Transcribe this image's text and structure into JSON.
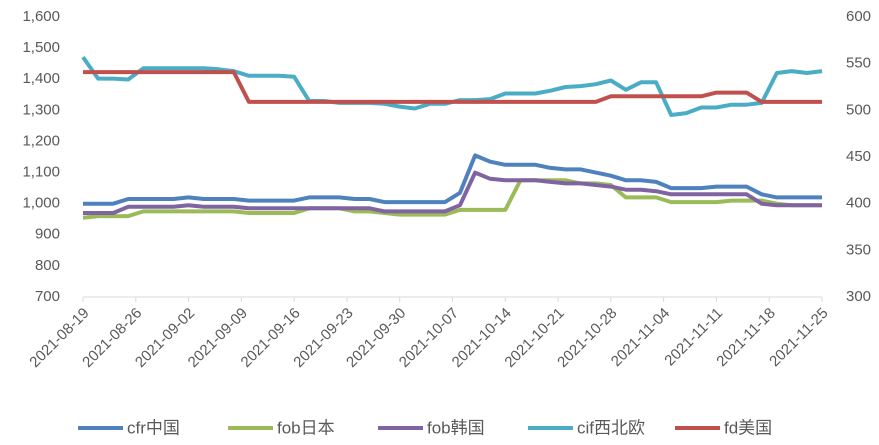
{
  "chart_data": {
    "type": "line",
    "x": [
      "2021-08-19",
      "2021-08-21",
      "2021-08-23",
      "2021-08-25",
      "2021-08-27",
      "2021-08-29",
      "2021-08-31",
      "2021-09-02",
      "2021-09-04",
      "2021-09-06",
      "2021-09-08",
      "2021-09-10",
      "2021-09-12",
      "2021-09-14",
      "2021-09-16",
      "2021-09-18",
      "2021-09-20",
      "2021-09-22",
      "2021-09-24",
      "2021-09-26",
      "2021-09-28",
      "2021-09-30",
      "2021-10-02",
      "2021-10-04",
      "2021-10-06",
      "2021-10-08",
      "2021-10-10",
      "2021-10-12",
      "2021-10-14",
      "2021-10-16",
      "2021-10-18",
      "2021-10-20",
      "2021-10-22",
      "2021-10-24",
      "2021-10-26",
      "2021-10-28",
      "2021-10-30",
      "2021-11-01",
      "2021-11-03",
      "2021-11-05",
      "2021-11-07",
      "2021-11-09",
      "2021-11-11",
      "2021-11-13",
      "2021-11-15",
      "2021-11-17",
      "2021-11-19",
      "2021-11-21",
      "2021-11-23",
      "2021-11-25"
    ],
    "xticks": [
      "2021-08-19",
      "2021-08-26",
      "2021-09-02",
      "2021-09-09",
      "2021-09-16",
      "2021-09-23",
      "2021-09-30",
      "2021-10-07",
      "2021-10-14",
      "2021-10-21",
      "2021-10-28",
      "2021-11-04",
      "2021-11-11",
      "2021-11-18",
      "2021-11-25"
    ],
    "xlim": [
      "2021-08-19",
      "2021-11-25"
    ],
    "ylim": [
      700,
      1600
    ],
    "yticks": [
      700,
      800,
      900,
      {
        "value": 1000,
        "label": "1,000"
      },
      {
        "value": 1100,
        "label": "1,100"
      },
      {
        "value": 1200,
        "label": "1,200"
      },
      {
        "value": 1300,
        "label": "1,300"
      },
      {
        "value": 1400,
        "label": "1,400"
      },
      {
        "value": 1500,
        "label": "1,500"
      },
      {
        "value": 1600,
        "label": "1,600"
      }
    ],
    "y2lim": [
      300,
      600
    ],
    "y2ticks": [
      300,
      350,
      400,
      450,
      500,
      550,
      600
    ],
    "legend": "bottom",
    "series": [
      {
        "name": "cfr中国",
        "color": "#4f81bd",
        "values": [
          1000,
          1000,
          1000,
          1015,
          1015,
          1015,
          1015,
          1020,
          1015,
          1015,
          1015,
          1010,
          1010,
          1010,
          1010,
          1020,
          1020,
          1020,
          1015,
          1015,
          1005,
          1005,
          1005,
          1005,
          1005,
          1035,
          1155,
          1135,
          1125,
          1125,
          1125,
          1115,
          1110,
          1110,
          1100,
          1090,
          1075,
          1075,
          1070,
          1050,
          1050,
          1050,
          1055,
          1055,
          1055,
          1030,
          1020,
          1020,
          1020,
          1020
        ]
      },
      {
        "name": "fob日本",
        "color": "#9bbb59",
        "values": [
          955,
          960,
          960,
          960,
          975,
          975,
          975,
          975,
          975,
          975,
          975,
          970,
          970,
          970,
          970,
          985,
          985,
          985,
          975,
          975,
          970,
          965,
          965,
          965,
          965,
          980,
          980,
          980,
          980,
          1075,
          1075,
          1075,
          1075,
          1065,
          1065,
          1060,
          1020,
          1020,
          1020,
          1005,
          1005,
          1005,
          1005,
          1010,
          1010,
          1010,
          1000,
          995,
          995,
          995
        ]
      },
      {
        "name": "fob韩国",
        "color": "#8064a2",
        "values": [
          970,
          970,
          970,
          990,
          990,
          990,
          990,
          995,
          990,
          990,
          990,
          985,
          985,
          985,
          985,
          985,
          985,
          985,
          985,
          985,
          975,
          975,
          975,
          975,
          975,
          995,
          1100,
          1080,
          1075,
          1075,
          1075,
          1070,
          1065,
          1065,
          1060,
          1055,
          1045,
          1045,
          1040,
          1030,
          1030,
          1030,
          1030,
          1030,
          1030,
          1000,
          995,
          995,
          995,
          995
        ]
      },
      {
        "name": "cif西北欧",
        "color": "#4bacc6",
        "axis": "y2",
        "values": [
          557,
          534,
          534,
          533,
          545,
          545,
          545,
          545,
          545,
          544,
          542,
          537,
          537,
          537,
          536,
          510,
          510,
          508,
          508,
          508,
          507,
          504,
          502,
          507,
          507,
          511,
          511,
          512,
          518,
          518,
          518,
          521,
          525,
          526,
          528,
          532,
          522,
          530,
          530,
          495,
          497,
          503,
          503,
          506,
          506,
          508,
          540,
          542,
          540,
          542
        ]
      },
      {
        "name": "fd美国",
        "color": "#c0504d",
        "axis": "y2",
        "values": [
          541,
          541,
          541,
          541,
          541,
          541,
          541,
          541,
          541,
          541,
          541,
          509,
          509,
          509,
          509,
          509,
          509,
          509,
          509,
          509,
          509,
          509,
          509,
          509,
          509,
          509,
          509,
          509,
          509,
          509,
          509,
          509,
          509,
          509,
          509,
          515,
          515,
          515,
          515,
          515,
          515,
          515,
          519,
          519,
          519,
          509,
          509,
          509,
          509,
          509
        ]
      }
    ]
  }
}
